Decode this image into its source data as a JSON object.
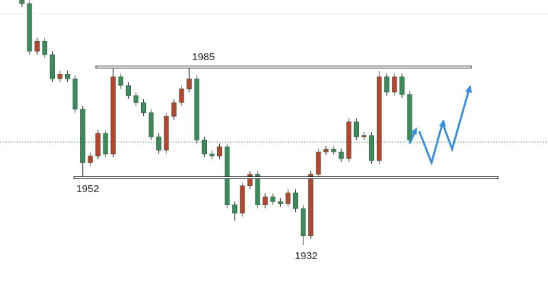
{
  "chart_data": {
    "type": "candlestick",
    "ylim": [
      1921.2,
      2005
    ],
    "open": [
      2004.9,
      2003.9,
      1989.7,
      1992.7,
      1988.7,
      1981.5,
      1982.9,
      1981.5,
      1972.4,
      1956.5,
      1958.5,
      1965.2,
      1959.1,
      1982.1,
      1979.5,
      1976.5,
      1974.4,
      1971.4,
      1964.2,
      1960.2,
      1970.3,
      1974.4,
      1978.5,
      1981.5,
      1963.2,
      1959.1,
      1958.5,
      1961.2,
      1943.9,
      1941.4,
      1949.6,
      1953.0,
      1943.9,
      1946.3,
      1944.9,
      1944.3,
      1947.5,
      1942.8,
      1934.7,
      1953.0,
      1959.7,
      1960.5,
      1959.7,
      1957.7,
      1968.7,
      1964.2,
      1964.6,
      1957.1,
      1982.1,
      1977.5,
      1982.1,
      1976.8
    ],
    "high": [
      2005.9,
      2004.9,
      1993.7,
      1993.7,
      1989.7,
      1983.9,
      1983.9,
      1982.5,
      1973.4,
      1959.5,
      1966.2,
      1966.2,
      1984.5,
      1983.1,
      1980.5,
      1977.5,
      1975.4,
      1972.4,
      1965.2,
      1971.3,
      1975.4,
      1979.5,
      1985.0,
      1982.5,
      1964.2,
      1960.1,
      1962.2,
      1962.2,
      1944.9,
      1950.6,
      1954.0,
      1954.0,
      1947.3,
      1947.3,
      1945.9,
      1948.5,
      1948.5,
      1943.8,
      1954.0,
      1960.7,
      1961.5,
      1961.5,
      1960.7,
      1969.7,
      1969.7,
      1965.6,
      1965.6,
      1983.8,
      1983.1,
      1983.1,
      1983.1,
      1977.8
    ],
    "low": [
      2002.9,
      1988.7,
      1988.7,
      1987.7,
      1980.5,
      1980.5,
      1980.5,
      1971.4,
      1952.0,
      1955.5,
      1957.5,
      1958.1,
      1958.1,
      1978.5,
      1975.5,
      1973.4,
      1970.4,
      1963.2,
      1959.2,
      1959.2,
      1969.3,
      1973.4,
      1977.5,
      1962.2,
      1958.1,
      1957.5,
      1957.5,
      1942.9,
      1939.2,
      1940.4,
      1948.6,
      1942.9,
      1942.9,
      1943.9,
      1943.3,
      1943.3,
      1941.8,
      1932.0,
      1933.7,
      1952.0,
      1958.7,
      1958.7,
      1956.7,
      1956.7,
      1963.2,
      1963.2,
      1956.1,
      1956.1,
      1976.5,
      1976.5,
      1975.8,
      1962.2
    ],
    "close": [
      2003.9,
      1989.7,
      1992.7,
      1988.7,
      1981.5,
      1982.9,
      1981.5,
      1972.4,
      1956.5,
      1958.5,
      1965.2,
      1959.1,
      1982.1,
      1979.5,
      1976.5,
      1974.4,
      1971.4,
      1964.2,
      1960.2,
      1970.3,
      1974.4,
      1978.5,
      1981.5,
      1963.2,
      1959.1,
      1958.5,
      1961.2,
      1943.9,
      1941.4,
      1949.6,
      1953.0,
      1943.9,
      1946.3,
      1944.9,
      1944.3,
      1947.5,
      1942.8,
      1934.7,
      1953.0,
      1959.7,
      1960.5,
      1959.7,
      1957.7,
      1968.7,
      1964.2,
      1964.6,
      1957.1,
      1982.1,
      1977.5,
      1982.1,
      1976.8,
      1963.2
    ],
    "up_color": "#b5452f",
    "down_color": "#3f8a5c",
    "wick_color": "#333333",
    "levels": [
      1985,
      1952,
      1932
    ],
    "current_price": 1962.6
  }
}
